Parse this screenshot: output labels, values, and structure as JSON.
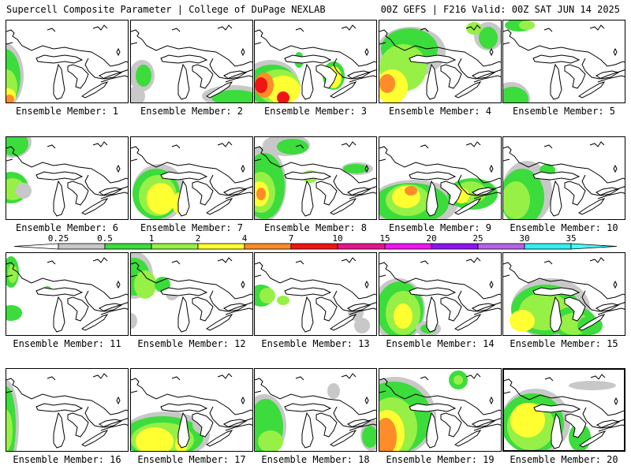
{
  "header": {
    "title_left": "Supercell Composite Parameter | College of DuPage NEXLAB",
    "title_right": "00Z GEFS | F216 Valid: 00Z SAT JUN 14 2025"
  },
  "legend": {
    "labels": [
      "0.25",
      "0.5",
      "1",
      "2",
      "4",
      "7",
      "10",
      "15",
      "20",
      "25",
      "30",
      "35"
    ],
    "colors": [
      "#ffffff",
      "#c8c8c8",
      "#3cdc3c",
      "#96f046",
      "#ffff32",
      "#ff8c28",
      "#f01414",
      "#e6148c",
      "#f014f0",
      "#8c14f0",
      "#b464e6",
      "#32f0f0",
      "#46ffff"
    ]
  },
  "members": [
    {
      "label": "Ensemble Member: 1"
    },
    {
      "label": "Ensemble Member: 2"
    },
    {
      "label": "Ensemble Member: 3"
    },
    {
      "label": "Ensemble Member: 4"
    },
    {
      "label": "Ensemble Member: 5"
    },
    {
      "label": "Ensemble Member: 6"
    },
    {
      "label": "Ensemble Member: 7"
    },
    {
      "label": "Ensemble Member: 8"
    },
    {
      "label": "Ensemble Member: 9"
    },
    {
      "label": "Ensemble Member: 10"
    },
    {
      "label": "Ensemble Member: 11"
    },
    {
      "label": "Ensemble Member: 12"
    },
    {
      "label": "Ensemble Member: 13"
    },
    {
      "label": "Ensemble Member: 14"
    },
    {
      "label": "Ensemble Member: 15"
    },
    {
      "label": "Ensemble Member: 16"
    },
    {
      "label": "Ensemble Member: 17"
    },
    {
      "label": "Ensemble Member: 18"
    },
    {
      "label": "Ensemble Member: 19"
    },
    {
      "label": "Ensemble Member: 20"
    }
  ]
}
